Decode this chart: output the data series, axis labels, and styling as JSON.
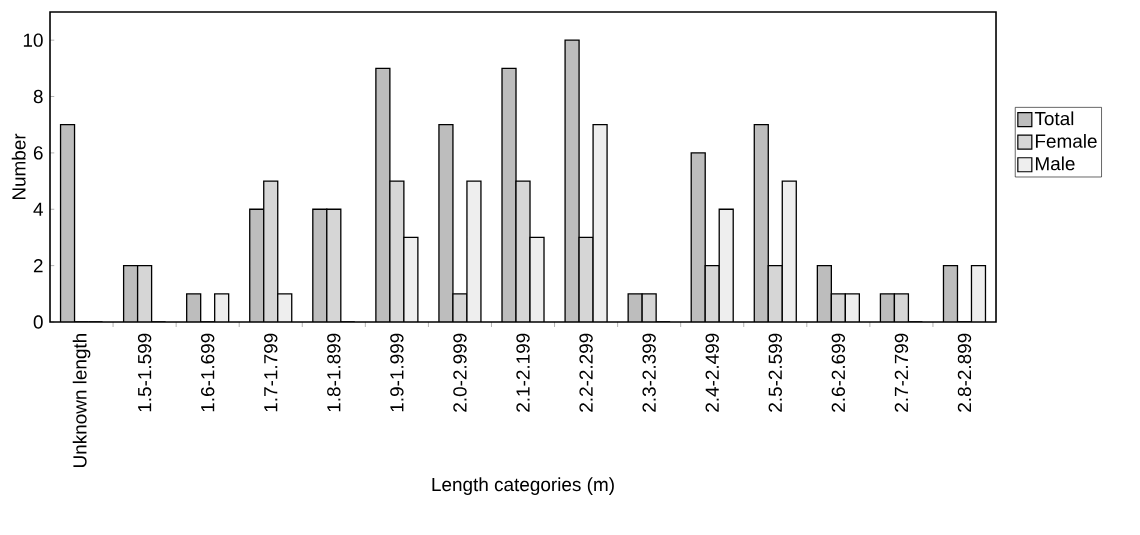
{
  "chart_data": {
    "type": "bar",
    "xlabel": "Length categories (m)",
    "ylabel": "Number",
    "categories": [
      "Unknown length",
      "1.5-1.599",
      "1.6-1.699",
      "1.7-1.799",
      "1.8-1.899",
      "1.9-1.999",
      "2.0-2.999",
      "2.1-2.199",
      "2.2-2.299",
      "2.3-2.399",
      "2.4-2.499",
      "2.5-2.599",
      "2.6-2.699",
      "2.7-2.799",
      "2.8-2.899"
    ],
    "series": [
      {
        "name": "Total",
        "color": "#bdbdbd",
        "values": [
          7,
          2,
          1,
          4,
          4,
          9,
          7,
          9,
          10,
          1,
          6,
          7,
          2,
          1,
          2
        ]
      },
      {
        "name": "Female",
        "color": "#d6d6d6",
        "values": [
          0,
          2,
          0,
          5,
          4,
          5,
          1,
          5,
          3,
          1,
          2,
          2,
          1,
          1,
          0
        ]
      },
      {
        "name": "Male",
        "color": "#eeeeee",
        "values": [
          0,
          0,
          1,
          1,
          0,
          3,
          5,
          3,
          7,
          0,
          4,
          5,
          1,
          0,
          2
        ]
      }
    ],
    "ylim": [
      0,
      11
    ],
    "yticks": [
      0,
      2,
      4,
      6,
      8,
      10
    ],
    "grid": false,
    "legend": "right"
  }
}
